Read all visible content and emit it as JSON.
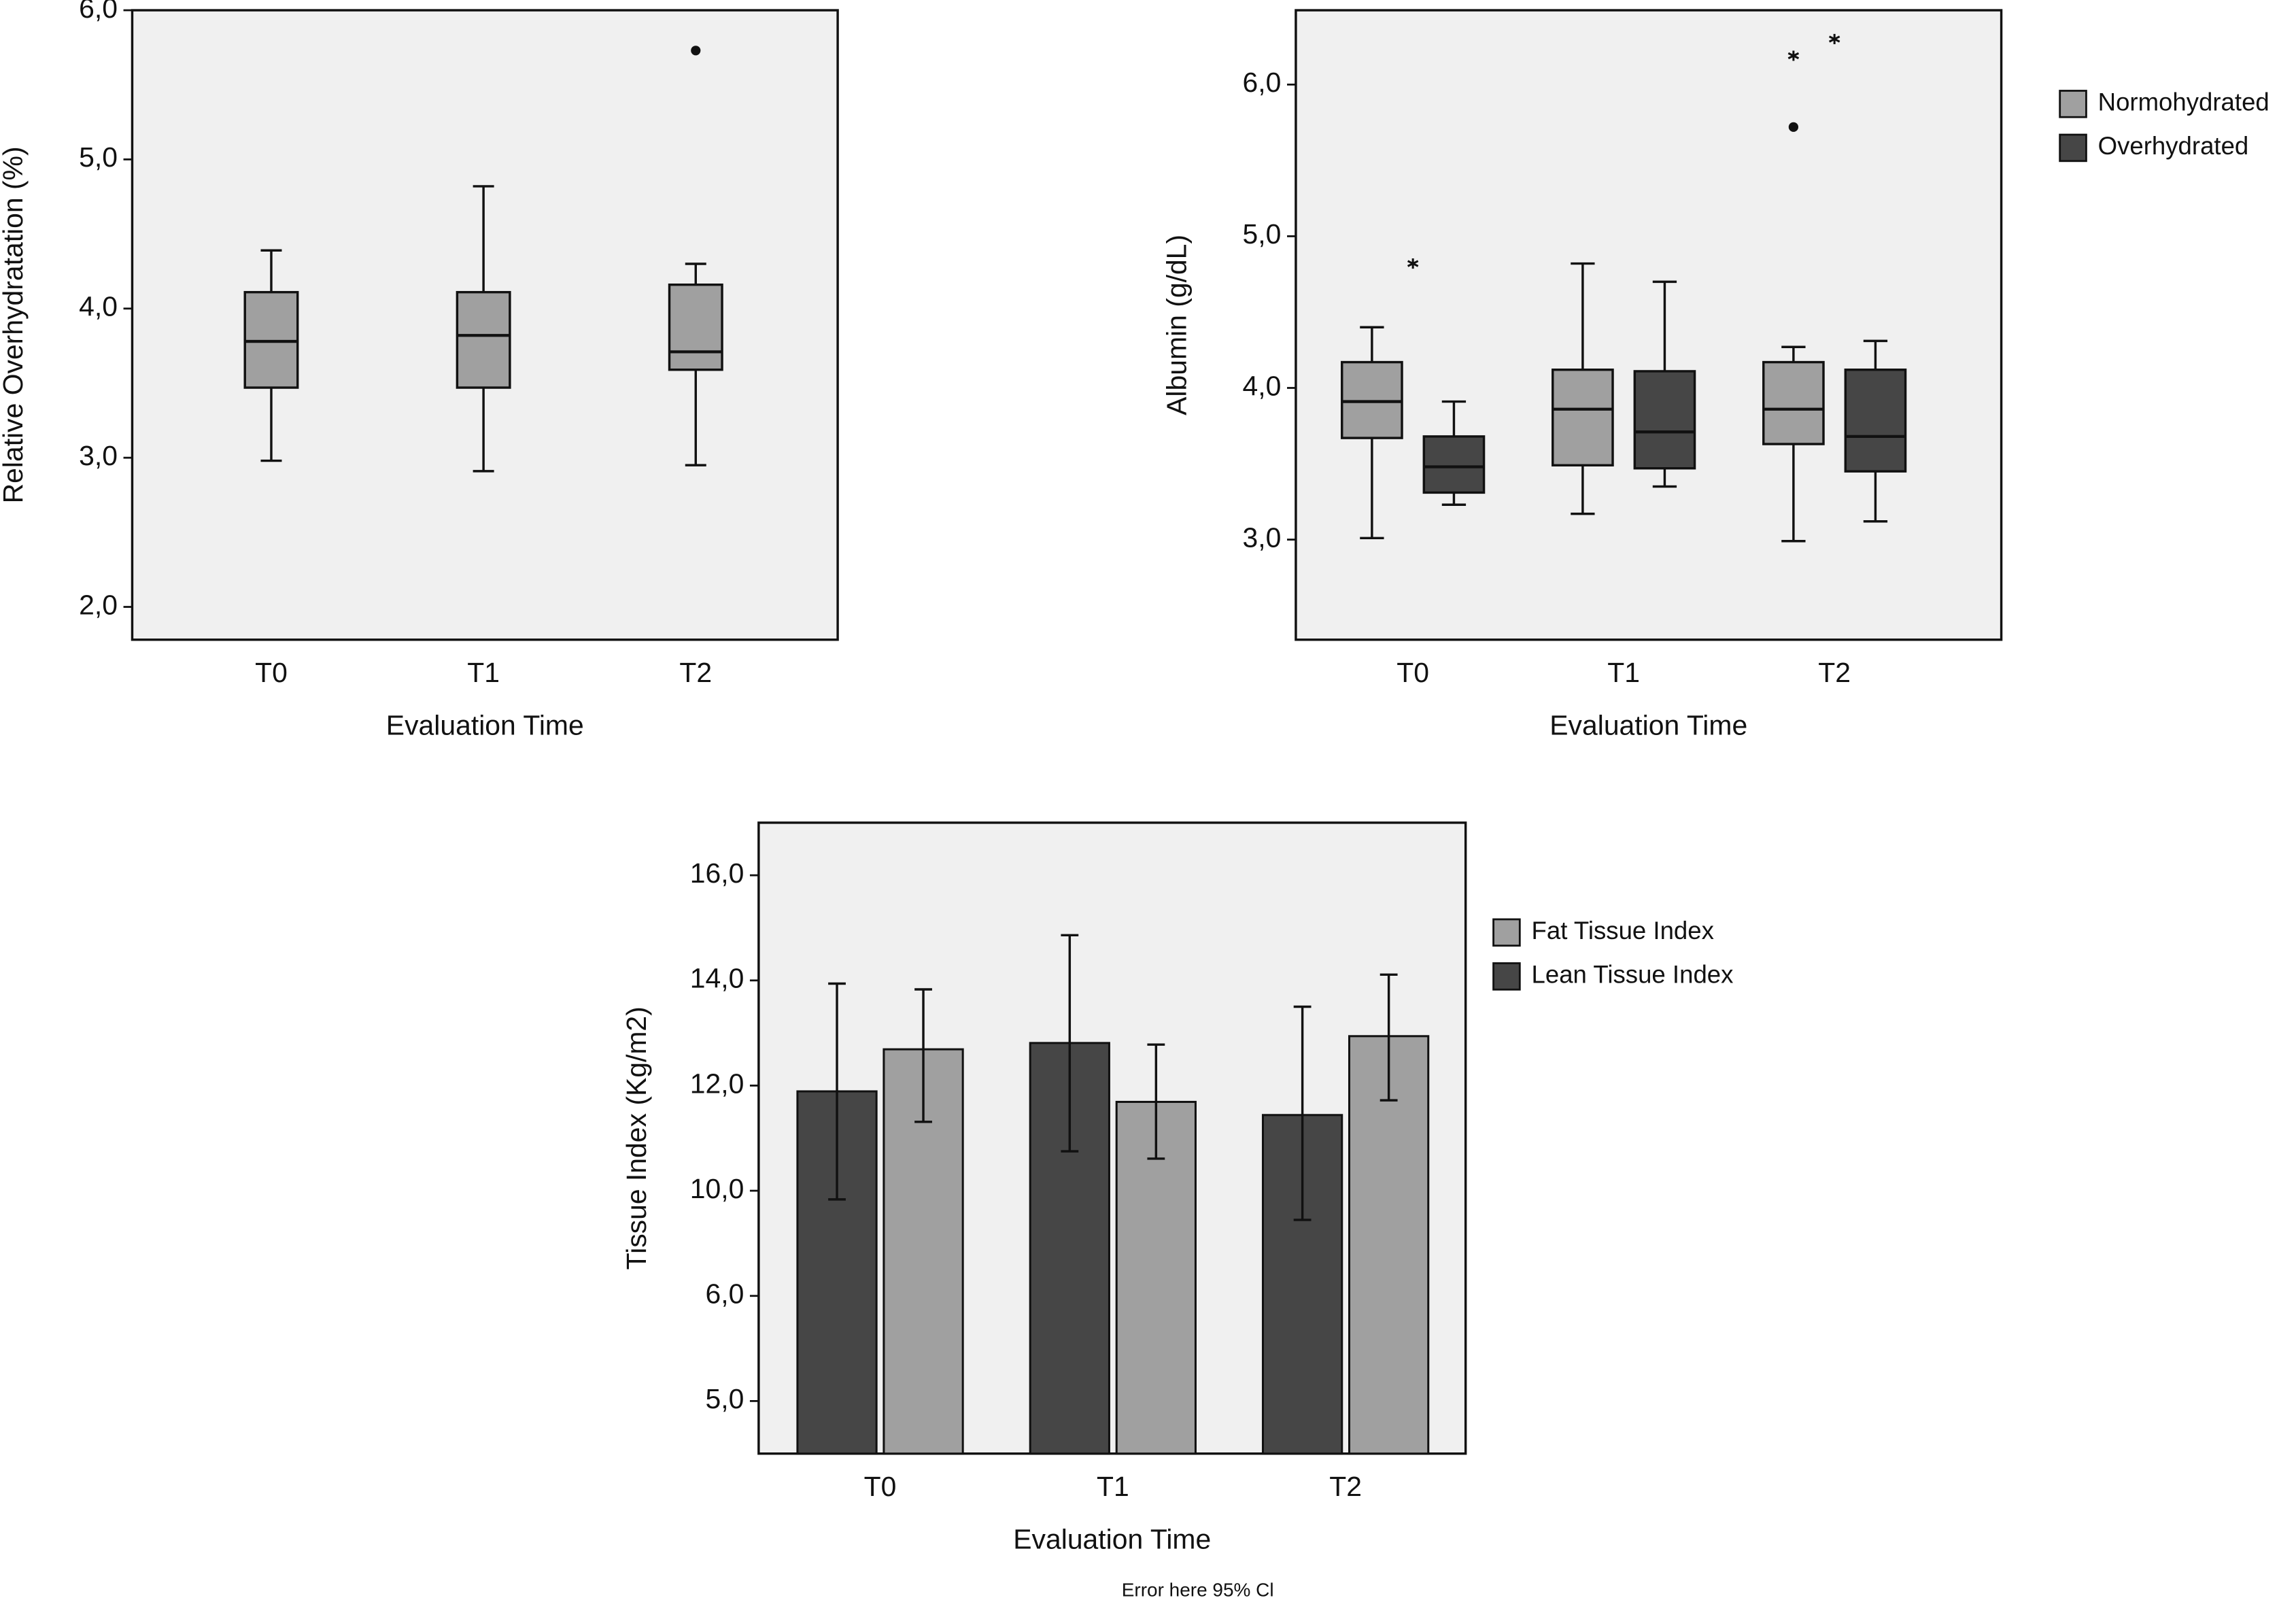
{
  "chart_data": [
    {
      "type": "box",
      "ylabel": "Relative Overhydratation (%)",
      "xlabel": "Evaluation Time",
      "categories": [
        "T0",
        "T1",
        "T2"
      ],
      "ylim": [
        1.78,
        6.0
      ],
      "yticks": [
        {
          "value": 2,
          "label": "2,0"
        },
        {
          "value": 3,
          "label": "3,0"
        },
        {
          "value": 4,
          "label": "4,0"
        },
        {
          "value": 5,
          "label": "5,0"
        },
        {
          "value": 6,
          "label": "6,0"
        }
      ],
      "series": [
        {
          "color": "#a0a0a0",
          "boxes": [
            {
              "min": 2.98,
              "q1": 3.47,
              "median": 3.78,
              "q3": 4.11,
              "max": 4.39,
              "outliers": [],
              "extremes": []
            },
            {
              "min": 2.91,
              "q1": 3.47,
              "median": 3.82,
              "q3": 4.11,
              "max": 4.82,
              "outliers": [],
              "extremes": []
            },
            {
              "min": 2.95,
              "q1": 3.59,
              "median": 3.71,
              "q3": 4.16,
              "max": 4.3,
              "outliers": [
                5.73
              ],
              "extremes": []
            }
          ]
        }
      ]
    },
    {
      "type": "box",
      "ylabel": "Albumin (g/dL)",
      "xlabel": "Evaluation Time",
      "categories": [
        "T0",
        "T1",
        "T2"
      ],
      "ylim": [
        2.34,
        6.49
      ],
      "yticks": [
        {
          "value": 3,
          "label": "3,0"
        },
        {
          "value": 4,
          "label": "4,0"
        },
        {
          "value": 5,
          "label": "5,0"
        },
        {
          "value": 6,
          "label": "6,0"
        }
      ],
      "series": [
        {
          "name": "Normohydrated",
          "color": "#a0a0a0",
          "boxes": [
            {
              "min": 3.01,
              "q1": 3.67,
              "median": 3.91,
              "q3": 4.17,
              "max": 4.4,
              "outliers": [],
              "extremes": []
            },
            {
              "min": 3.17,
              "q1": 3.49,
              "median": 3.86,
              "q3": 4.12,
              "max": 4.82,
              "outliers": [],
              "extremes": []
            },
            {
              "min": 2.99,
              "q1": 3.63,
              "median": 3.86,
              "q3": 4.17,
              "max": 4.27,
              "outliers": [
                5.72
              ],
              "extremes": [
                6.19
              ]
            }
          ]
        },
        {
          "name": "Overhydrated",
          "color": "#464646",
          "boxes": [
            {
              "min": 3.23,
              "q1": 3.31,
              "median": 3.48,
              "q3": 3.68,
              "max": 3.91,
              "outliers": [],
              "extremes": [
                4.82
              ]
            },
            {
              "min": 3.35,
              "q1": 3.47,
              "median": 3.71,
              "q3": 4.11,
              "max": 4.7,
              "outliers": [],
              "extremes": []
            },
            {
              "min": 3.12,
              "q1": 3.45,
              "median": 3.68,
              "q3": 4.12,
              "max": 4.31,
              "outliers": [],
              "extremes": [
                6.3
              ]
            }
          ]
        }
      ]
    },
    {
      "type": "bar",
      "ylabel": "Tissue Index (Kg/m2)",
      "xlabel": "Evaluation Time",
      "note": "Error here 95% Cl",
      "categories": [
        "T0",
        "T1",
        "T2"
      ],
      "ylim": [
        4.5,
        17
      ],
      "yticks": [
        {
          "value": 5,
          "label": "5,0"
        },
        {
          "value": 6,
          "label": "6,0"
        },
        {
          "value": 10,
          "label": "10,0"
        },
        {
          "value": 12,
          "label": "12,0"
        },
        {
          "value": 14,
          "label": "14,0"
        },
        {
          "value": 16,
          "label": "16,0"
        }
      ],
      "series": [
        {
          "name": "Fat Tissue Index",
          "color": "#a0a0a0",
          "values": [
            12.69,
            11.69,
            12.94
          ],
          "ci_low": [
            11.31,
            10.61,
            11.72
          ],
          "ci_high": [
            13.83,
            12.78,
            14.11
          ]
        },
        {
          "name": "Lean Tissue Index",
          "color": "#464646",
          "values": [
            11.89,
            12.81,
            11.44
          ],
          "ci_low": [
            9.67,
            10.75,
            8.89
          ],
          "ci_high": [
            13.94,
            14.86,
            13.5
          ]
        }
      ]
    }
  ]
}
